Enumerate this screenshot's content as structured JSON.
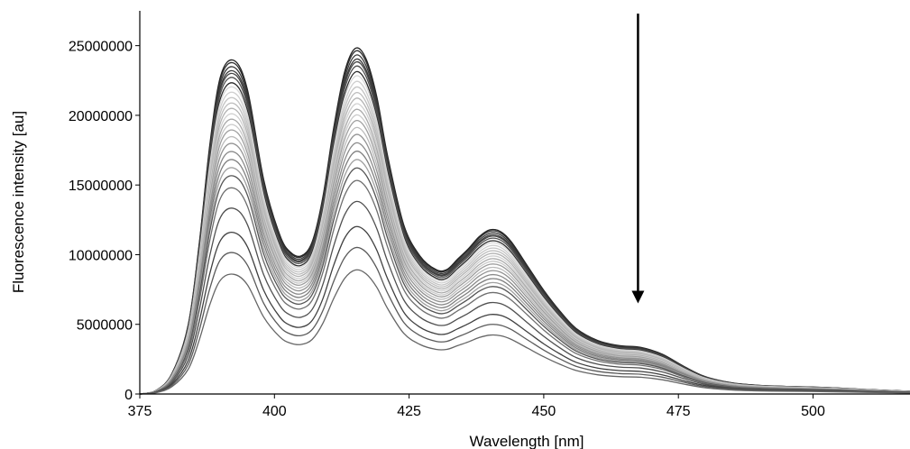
{
  "chart_data": {
    "type": "line",
    "title": "",
    "xlabel": "Wavelength [nm]",
    "ylabel": "Fluorescence intensity [au]",
    "xlim": [
      375,
      518
    ],
    "ylim": [
      0,
      27500000
    ],
    "xticks": [
      375,
      400,
      425,
      450,
      475,
      500
    ],
    "yticks": [
      0,
      5000000,
      10000000,
      15000000,
      20000000,
      25000000
    ],
    "xtick_labels": [
      "375",
      "400",
      "425",
      "450",
      "475",
      "500"
    ],
    "ytick_labels": [
      "0",
      "5000000",
      "10000000",
      "15000000",
      "20000000",
      "25000000"
    ],
    "grid": false,
    "legend": "none",
    "annotation": {
      "type": "arrow",
      "direction": "down",
      "x": 467.5,
      "y_from": 27300000,
      "y_to": 6500000,
      "meaning": "decreasing intensity"
    },
    "profile_x": [
      375,
      378,
      381,
      384,
      386,
      388,
      390,
      392.5,
      395,
      398,
      401,
      403,
      405,
      407,
      409,
      411,
      413,
      415,
      417,
      419,
      421,
      424,
      427,
      430,
      432,
      434,
      436,
      438,
      440,
      442,
      444,
      447,
      450,
      453,
      456,
      460,
      464,
      468,
      472,
      476,
      480,
      485,
      490,
      495,
      500,
      505,
      510,
      518
    ],
    "profile_y": [
      0,
      0.01,
      0.06,
      0.2,
      0.43,
      0.72,
      0.92,
      0.965,
      0.88,
      0.62,
      0.46,
      0.41,
      0.4,
      0.44,
      0.57,
      0.77,
      0.93,
      1.0,
      0.97,
      0.86,
      0.69,
      0.49,
      0.4,
      0.36,
      0.36,
      0.39,
      0.42,
      0.455,
      0.475,
      0.47,
      0.44,
      0.37,
      0.3,
      0.24,
      0.19,
      0.155,
      0.14,
      0.135,
      0.115,
      0.08,
      0.05,
      0.032,
      0.025,
      0.022,
      0.02,
      0.017,
      0.013,
      0.008
    ],
    "series": [
      {
        "peak_value": 24800000,
        "color": "#222222"
      },
      {
        "peak_value": 24600000,
        "color": "#2d2d2d"
      },
      {
        "peak_value": 24300000,
        "color": "#383838"
      },
      {
        "peak_value": 24000000,
        "color": "#3a3a3a"
      },
      {
        "peak_value": 23800000,
        "color": "#444444"
      },
      {
        "peak_value": 23500000,
        "color": "#505050"
      },
      {
        "peak_value": 23100000,
        "color": "#2a2a2a"
      },
      {
        "peak_value": 22800000,
        "color": "#d8d8d8"
      },
      {
        "peak_value": 22400000,
        "color": "#cfcfcf"
      },
      {
        "peak_value": 22000000,
        "color": "#c4c4c4"
      },
      {
        "peak_value": 21600000,
        "color": "#bdbdbd"
      },
      {
        "peak_value": 21200000,
        "color": "#b3b3b3"
      },
      {
        "peak_value": 20800000,
        "color": "#d0d0d0"
      },
      {
        "peak_value": 20400000,
        "color": "#a9a9a9"
      },
      {
        "peak_value": 20000000,
        "color": "#c9c9c9"
      },
      {
        "peak_value": 19600000,
        "color": "#9e9e9e"
      },
      {
        "peak_value": 19100000,
        "color": "#bbbbbb"
      },
      {
        "peak_value": 18600000,
        "color": "#939393"
      },
      {
        "peak_value": 18000000,
        "color": "#8a8a8a"
      },
      {
        "peak_value": 17400000,
        "color": "#7f7f7f"
      },
      {
        "peak_value": 16800000,
        "color": "#a0a0a0"
      },
      {
        "peak_value": 16200000,
        "color": "#555555"
      },
      {
        "peak_value": 15300000,
        "color": "#6e6e6e"
      },
      {
        "peak_value": 13800000,
        "color": "#505050"
      },
      {
        "peak_value": 12000000,
        "color": "#404040"
      },
      {
        "peak_value": 10500000,
        "color": "#5a5a5a"
      },
      {
        "peak_value": 8900000,
        "color": "#666666"
      }
    ]
  }
}
